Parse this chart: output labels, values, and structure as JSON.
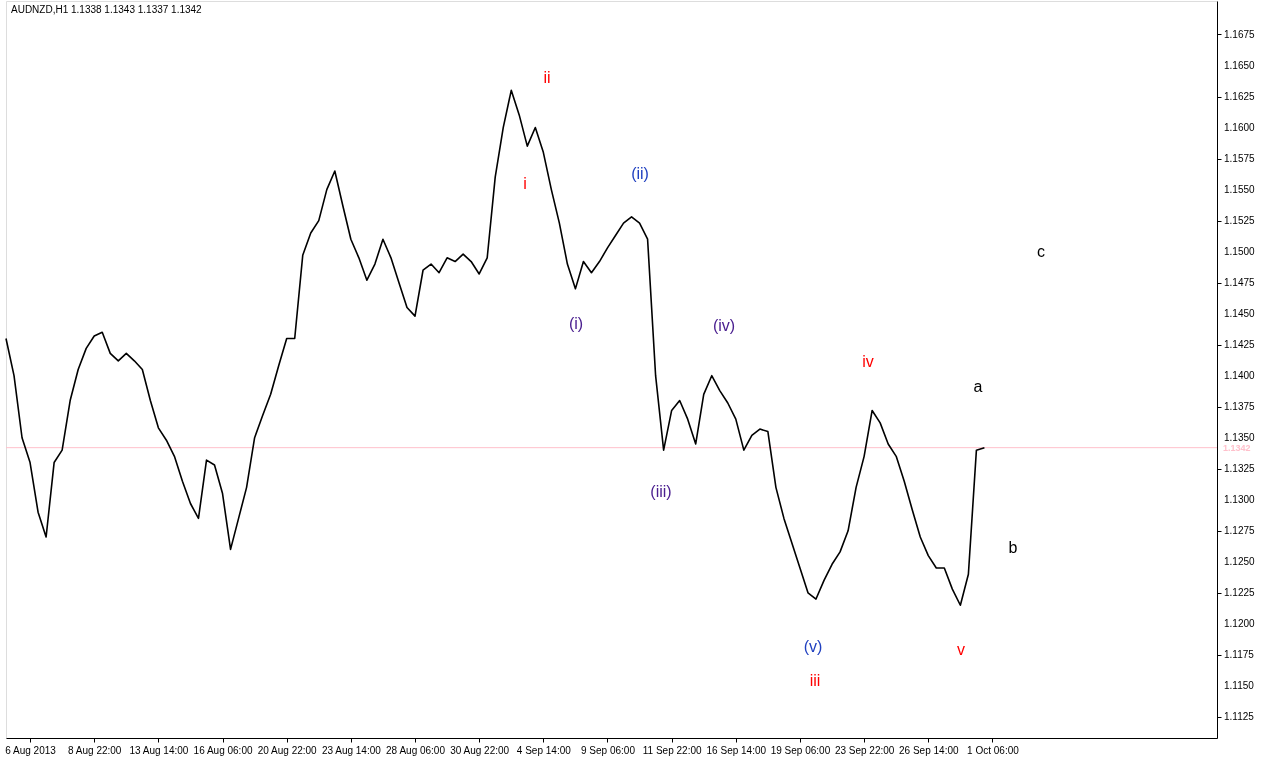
{
  "chart_data": {
    "type": "line",
    "title": "AUDNZD,H1  1.1338 1.1343 1.1337 1.1342",
    "categories": [
      null,
      null,
      null,
      "6 Aug 2013",
      null,
      null,
      null,
      null,
      null,
      null,
      null,
      "8 Aug 22:00",
      null,
      null,
      null,
      null,
      null,
      null,
      null,
      "13 Aug 14:00",
      null,
      null,
      null,
      null,
      null,
      null,
      null,
      "16 Aug 06:00",
      null,
      null,
      null,
      null,
      null,
      null,
      null,
      "20 Aug 22:00",
      null,
      null,
      null,
      null,
      null,
      null,
      null,
      "23 Aug 14:00",
      null,
      null,
      null,
      null,
      null,
      null,
      null,
      "28 Aug 06:00",
      null,
      null,
      null,
      null,
      null,
      null,
      null,
      "30 Aug 22:00",
      null,
      null,
      null,
      null,
      null,
      null,
      null,
      "4 Sep 14:00",
      null,
      null,
      null,
      null,
      null,
      null,
      null,
      "9 Sep 06:00",
      null,
      null,
      null,
      null,
      null,
      null,
      null,
      "11 Sep 22:00",
      null,
      null,
      null,
      null,
      null,
      null,
      null,
      "16 Sep 14:00",
      null,
      null,
      null,
      null,
      null,
      null,
      null,
      "19 Sep 06:00",
      null,
      null,
      null,
      null,
      null,
      null,
      null,
      "23 Sep 22:00",
      null,
      null,
      null,
      null,
      null,
      null,
      null,
      "26 Sep 14:00",
      null,
      null,
      null,
      null,
      null,
      null,
      null,
      "1 Oct 06:00",
      null,
      null,
      null,
      null,
      null,
      null,
      null,
      null,
      null,
      null,
      null,
      null,
      null,
      null,
      null,
      null,
      null,
      null,
      null,
      null,
      null,
      null,
      null,
      null,
      null,
      null,
      null,
      null
    ],
    "series": [
      {
        "color": "#000000",
        "values": [
          1.143,
          1.14,
          1.135,
          1.133,
          1.129,
          1.127,
          1.133,
          1.134,
          1.138,
          1.1405,
          1.1422,
          1.1432,
          1.1435,
          1.1418,
          1.1412,
          1.1418,
          1.1412,
          1.1405,
          1.138,
          1.1358,
          1.1348,
          1.1335,
          1.1315,
          1.1297,
          1.1285,
          1.1332,
          1.1328,
          1.1305,
          1.126,
          1.1285,
          1.131,
          1.135,
          1.1368,
          1.1385,
          1.1408,
          1.143,
          1.143,
          1.1497,
          1.1515,
          1.1525,
          1.155,
          1.1565,
          1.1537,
          1.151,
          1.1495,
          1.1477,
          1.149,
          1.151,
          1.1495,
          1.1475,
          1.1455,
          1.1448,
          1.1485,
          1.149,
          1.1483,
          1.1495,
          1.1492,
          1.1498,
          1.1492,
          1.1482,
          1.1495,
          1.156,
          1.16,
          1.163,
          1.161,
          1.1585,
          1.16,
          1.158,
          1.155,
          1.1523,
          1.149,
          1.147,
          1.1492,
          1.1483,
          1.1492,
          1.1503,
          1.1513,
          1.1523,
          1.1528,
          1.1523,
          1.151,
          1.14,
          1.134,
          1.1372,
          1.138,
          1.1365,
          1.1345,
          1.1385,
          1.14,
          1.1388,
          1.1378,
          1.1365,
          1.134,
          1.1352,
          1.1357,
          1.1355,
          1.131,
          1.1285,
          1.1265,
          1.1245,
          1.1225,
          1.122,
          1.1235,
          1.1248,
          1.1258,
          1.1275,
          1.131,
          1.1335,
          1.1372,
          1.1362,
          1.1345,
          1.1335,
          1.1315,
          1.1292,
          1.127,
          1.1255,
          1.1245,
          1.1245,
          1.1228,
          1.1215,
          1.124,
          1.134,
          1.1342,
          null,
          null,
          null,
          null,
          null,
          null,
          null,
          null,
          null,
          null,
          null,
          null,
          null,
          null,
          null,
          null,
          null,
          null,
          null,
          null,
          null,
          null,
          null,
          null,
          null,
          null,
          null,
          null,
          null
        ]
      }
    ],
    "ylim": [
      1.1108,
      1.1702
    ],
    "yticks": [
      1.1125,
      {
        "value": 1.115,
        "label": "1.1150"
      },
      1.1175,
      {
        "value": 1.12,
        "label": "1.1200"
      },
      1.1225,
      {
        "value": 1.125,
        "label": "1.1250"
      },
      1.1275,
      {
        "value": 1.13,
        "label": "1.1300"
      },
      1.1325,
      {
        "value": 1.135,
        "label": "1.1350"
      },
      1.1375,
      {
        "value": 1.14,
        "label": "1.1400"
      },
      1.1425,
      {
        "value": 1.145,
        "label": "1.1450"
      },
      1.1475,
      {
        "value": 1.15,
        "label": "1.1500"
      },
      1.1525,
      {
        "value": 1.155,
        "label": "1.1550"
      },
      1.1575,
      {
        "value": 1.16,
        "label": "1.1600"
      },
      1.1625,
      {
        "value": 1.165,
        "label": "1.1650"
      },
      1.1675
    ],
    "ref_lines": [
      {
        "axis": "y",
        "value": 1.1342,
        "label": "1.1342",
        "color": "#ffc0cb"
      }
    ],
    "annotations": [
      "ii",
      "i",
      "iii",
      "iv",
      "v",
      "(i)",
      "(ii)",
      "(iii)",
      "(iv)",
      "(v)",
      "a",
      "b",
      "c"
    ]
  }
}
